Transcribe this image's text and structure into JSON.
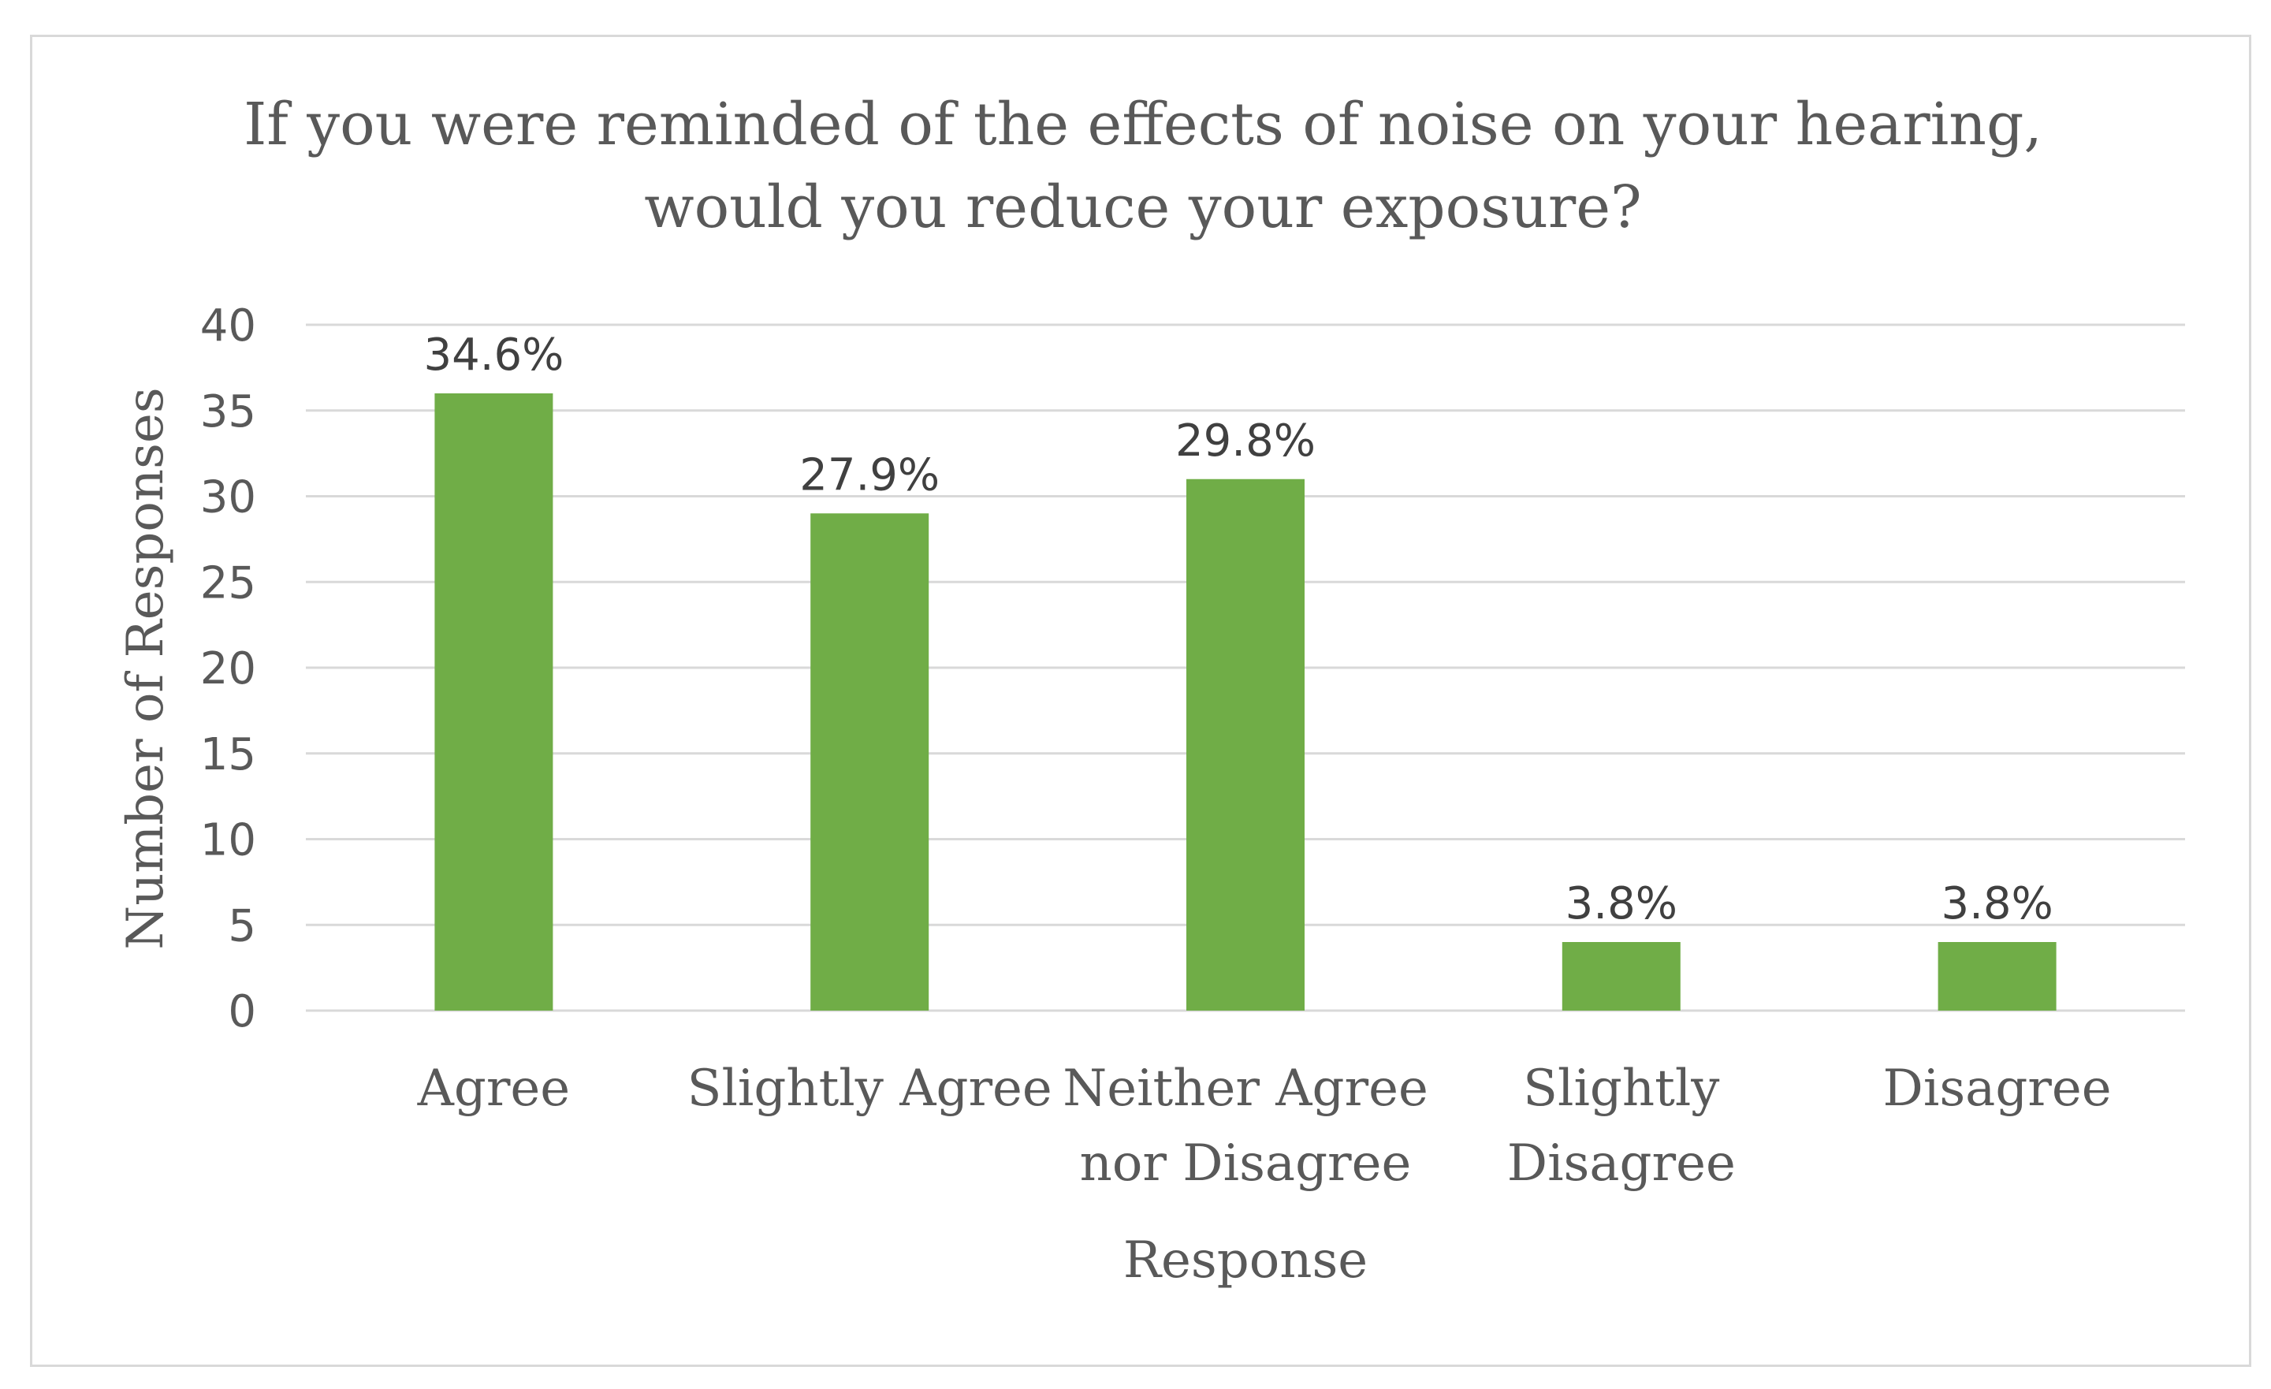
{
  "chart_data": {
    "type": "bar",
    "title": [
      "If you were reminded of the effects of noise on your hearing,",
      "would you reduce your exposure?"
    ],
    "xlabel": "Response",
    "ylabel": "Number of Responses",
    "categories": [
      [
        "Agree"
      ],
      [
        "Slightly Agree"
      ],
      [
        "Neither Agree",
        "nor Disagree"
      ],
      [
        "Slightly",
        "Disagree"
      ],
      [
        "Disagree"
      ]
    ],
    "values": [
      36,
      29,
      31,
      4,
      4
    ],
    "data_labels": [
      "34.6%",
      "27.9%",
      "29.8%",
      "3.8%",
      "3.8%"
    ],
    "ylim": [
      0,
      40
    ],
    "yticks": [
      0,
      5,
      10,
      15,
      20,
      25,
      30,
      35,
      40
    ],
    "grid": true,
    "legend": "none",
    "bar_color": "#70ad47",
    "grid_color": "#d9d9d9"
  }
}
